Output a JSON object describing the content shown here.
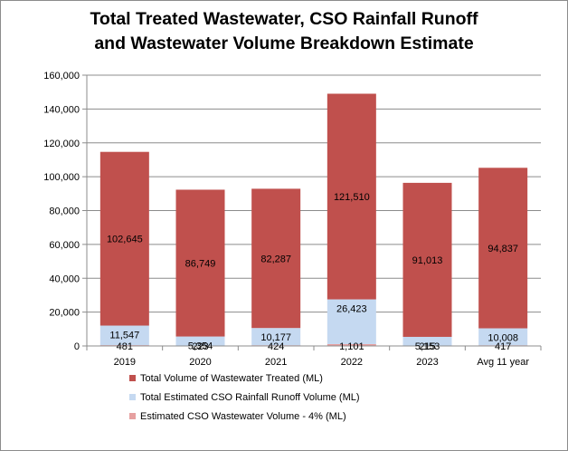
{
  "chart_data": {
    "type": "bar",
    "stacked": true,
    "title_line1": "Total Treated Wastewater, CSO Rainfall Runoff",
    "title_line2": "and Wastewater Volume Breakdown Estimate",
    "categories": [
      "2019",
      "2020",
      "2021",
      "2022",
      "2023",
      "Avg 11 year"
    ],
    "series": [
      {
        "name": "Estimated CSO Wastewater Volume - 4% (ML)",
        "color": "#e6a0a0",
        "values": [
          481,
          223,
          424,
          1101,
          215,
          417
        ],
        "labels": [
          "481",
          "223",
          "424",
          "1,101",
          "215",
          "417"
        ]
      },
      {
        "name": "Total Estimated CSO Rainfall Runoff Volume (ML)",
        "color": "#c5d9f1",
        "values": [
          11547,
          5354,
          10177,
          26423,
          5153,
          10008
        ],
        "labels": [
          "11,547",
          "5,354",
          "10,177",
          "26,423",
          "5,153",
          "10,008"
        ]
      },
      {
        "name": "Total Volume of Wastewater Treated (ML)",
        "color": "#c0504d",
        "values": [
          102645,
          86749,
          82287,
          121510,
          91013,
          94837
        ],
        "labels": [
          "102,645",
          "86,749",
          "82,287",
          "121,510",
          "91,013",
          "94,837"
        ]
      }
    ],
    "legend_order": [
      2,
      1,
      0
    ],
    "ylim": [
      0,
      160000
    ],
    "yticks": [
      0,
      20000,
      40000,
      60000,
      80000,
      100000,
      120000,
      140000,
      160000
    ],
    "ytick_labels": [
      "0",
      "20,000",
      "40,000",
      "60,000",
      "80,000",
      "100,000",
      "120,000",
      "140,000",
      "160,000"
    ],
    "grid": true,
    "legend_position": "bottom-left",
    "xlabel": "",
    "ylabel": ""
  }
}
